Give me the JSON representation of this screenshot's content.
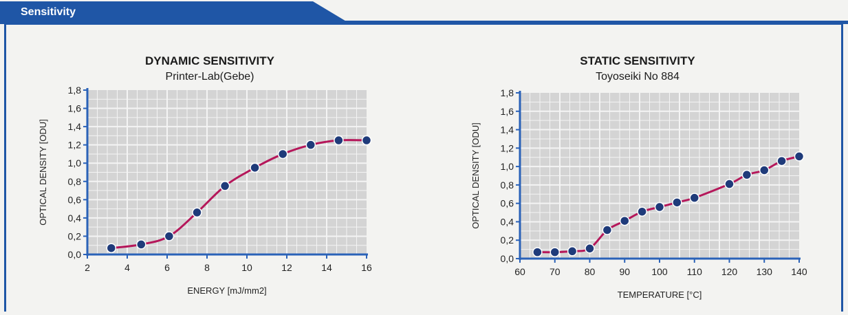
{
  "section": {
    "title": "Sensitivity"
  },
  "colors": {
    "header_blue": "#1f56a6",
    "grid_bg": "#d4d4d4",
    "grid_line": "#f4f4f4",
    "axis_blue": "#2a62b8",
    "curve": "#b5175a",
    "marker": "#1f3b7a"
  },
  "chart_data": [
    {
      "type": "line",
      "title": "DYNAMIC SENSITIVITY",
      "subtitle": "Printer-Lab(Gebe)",
      "xlabel": "ENERGY [mJ/mm2]",
      "ylabel": "OPTICAL DENSITY [ODU]",
      "xlim": [
        2,
        16
      ],
      "ylim": [
        0,
        1.8
      ],
      "x_ticks": [
        "2",
        "4",
        "6",
        "8",
        "10",
        "12",
        "14",
        "16"
      ],
      "y_ticks": [
        "0,0",
        "0,2",
        "0,4",
        "0,6",
        "0,8",
        "1,0",
        "1,2",
        "1,4",
        "1,6",
        "1,8"
      ],
      "grid": true,
      "series": [
        {
          "x": [
            3.2,
            4.7,
            6.1,
            7.5,
            8.9,
            10.4,
            11.8,
            13.2,
            14.6,
            16.0
          ],
          "y": [
            0.07,
            0.11,
            0.2,
            0.46,
            0.75,
            0.95,
            1.1,
            1.2,
            1.25,
            1.25
          ]
        }
      ]
    },
    {
      "type": "line",
      "title": "STATIC SENSITIVITY",
      "subtitle": "Toyoseiki No 884",
      "xlabel": "TEMPERATURE [°C]",
      "ylabel": "OPTICAL DENSITY [ODU]",
      "xlim": [
        60,
        140
      ],
      "ylim": [
        0,
        1.8
      ],
      "x_ticks": [
        "60",
        "70",
        "80",
        "90",
        "100",
        "110",
        "120",
        "130",
        "140"
      ],
      "y_ticks": [
        "0,0",
        "0,2",
        "0,4",
        "0,6",
        "0,8",
        "1,0",
        "1,2",
        "1,4",
        "1,6",
        "1,8"
      ],
      "grid": true,
      "series": [
        {
          "x": [
            65,
            70,
            75,
            80,
            85,
            90,
            95,
            100,
            105,
            110,
            120,
            125,
            130,
            135,
            140
          ],
          "y": [
            0.07,
            0.07,
            0.08,
            0.11,
            0.31,
            0.41,
            0.51,
            0.56,
            0.61,
            0.66,
            0.81,
            0.91,
            0.96,
            1.06,
            1.11
          ]
        }
      ]
    }
  ]
}
